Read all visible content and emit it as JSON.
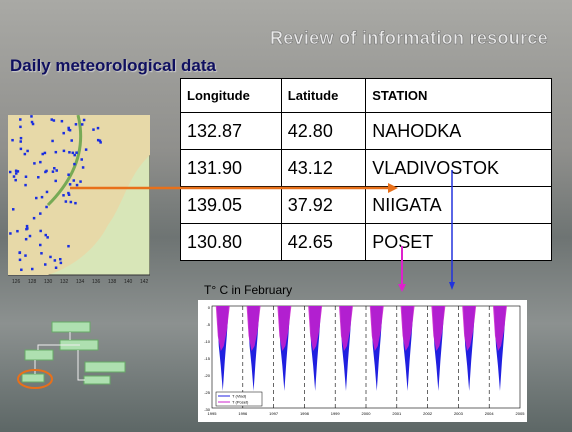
{
  "header": {
    "title": "Review of information resource",
    "subtitle": "Daily meteorological data"
  },
  "table": {
    "columns": [
      "Longitude",
      "Latitude",
      "STATION"
    ],
    "rows": [
      [
        "132.87",
        "42.80",
        "NAHODKA"
      ],
      [
        "131.90",
        "43.12",
        "VLADIVOSTOK"
      ],
      [
        "139.05",
        "37.92",
        "NIIGATA"
      ],
      [
        "130.80",
        "42.65",
        "POSET"
      ]
    ]
  },
  "plot": {
    "caption": "T° C in February",
    "legend": [
      "T (Vlad)",
      "T (Poset)"
    ],
    "years": [
      "1995",
      "1996",
      "1997",
      "1998",
      "1999",
      "2000",
      "2001",
      "2002",
      "2003",
      "2004",
      "2005"
    ],
    "yticks": [
      "0",
      "-5",
      "-10",
      "-15",
      "-20",
      "-25",
      "-30"
    ]
  },
  "map": {
    "xticks": [
      "126",
      "128",
      "130",
      "132",
      "134",
      "136",
      "138",
      "140",
      "142"
    ]
  }
}
